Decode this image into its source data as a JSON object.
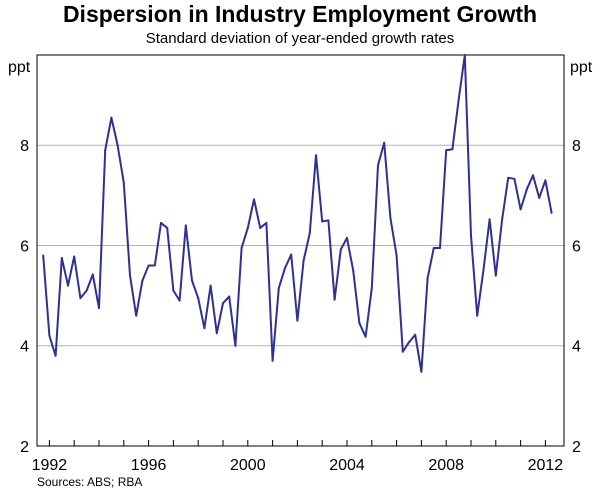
{
  "chart_data": {
    "type": "line",
    "title": "Dispersion in Industry Employment Growth",
    "subtitle": "Standard deviation of year-ended growth rates",
    "ylabel_left": "ppt",
    "ylabel_right": "ppt",
    "ylim": [
      2,
      9.8
    ],
    "yticks": [
      2,
      4,
      6,
      8
    ],
    "xlim": [
      1991.5,
      2012.75
    ],
    "xticks": [
      1992,
      1996,
      2000,
      2004,
      2008,
      2012
    ],
    "grid": true,
    "source": "Sources: ABS; RBA",
    "series": [
      {
        "name": "Standard deviation of year-ended growth rates",
        "color": "#2e3192",
        "x": [
          1991.75,
          1992.0,
          1992.25,
          1992.5,
          1992.75,
          1993.0,
          1993.25,
          1993.5,
          1993.75,
          1994.0,
          1994.25,
          1994.5,
          1994.75,
          1995.0,
          1995.25,
          1995.5,
          1995.75,
          1996.0,
          1996.25,
          1996.5,
          1996.75,
          1997.0,
          1997.25,
          1997.5,
          1997.75,
          1998.0,
          1998.25,
          1998.5,
          1998.75,
          1999.0,
          1999.25,
          1999.5,
          1999.75,
          2000.0,
          2000.25,
          2000.5,
          2000.75,
          2001.0,
          2001.25,
          2001.5,
          2001.75,
          2002.0,
          2002.25,
          2002.5,
          2002.75,
          2003.0,
          2003.25,
          2003.5,
          2003.75,
          2004.0,
          2004.25,
          2004.5,
          2004.75,
          2005.0,
          2005.25,
          2005.5,
          2005.75,
          2006.0,
          2006.25,
          2006.5,
          2006.75,
          2007.0,
          2007.25,
          2007.5,
          2007.75,
          2008.0,
          2008.25,
          2008.5,
          2008.75,
          2009.0,
          2009.25,
          2009.5,
          2009.75,
          2010.0,
          2010.25,
          2010.5,
          2010.75,
          2011.0,
          2011.25,
          2011.5,
          2011.75,
          2012.0,
          2012.25
        ],
        "values": [
          5.8,
          4.2,
          3.8,
          5.75,
          5.2,
          5.78,
          4.95,
          5.1,
          5.42,
          4.75,
          7.9,
          8.55,
          8.0,
          7.25,
          5.4,
          4.6,
          5.3,
          5.6,
          5.6,
          6.45,
          6.35,
          5.1,
          4.9,
          6.4,
          5.3,
          4.95,
          4.35,
          5.2,
          4.25,
          4.85,
          4.98,
          4.0,
          5.95,
          6.35,
          6.92,
          6.35,
          6.45,
          3.7,
          5.15,
          5.55,
          5.82,
          4.5,
          5.7,
          6.25,
          7.8,
          6.48,
          6.5,
          4.92,
          5.92,
          6.15,
          5.5,
          4.45,
          4.18,
          5.15,
          7.6,
          8.05,
          6.55,
          5.8,
          3.88,
          4.07,
          4.22,
          3.48,
          5.35,
          5.95,
          5.95,
          7.9,
          7.92,
          8.9,
          9.8,
          6.2,
          4.6,
          5.5,
          6.52,
          5.4,
          6.5,
          7.35,
          7.33,
          6.72,
          7.12,
          7.4,
          6.95,
          7.3,
          6.65
        ]
      }
    ]
  }
}
